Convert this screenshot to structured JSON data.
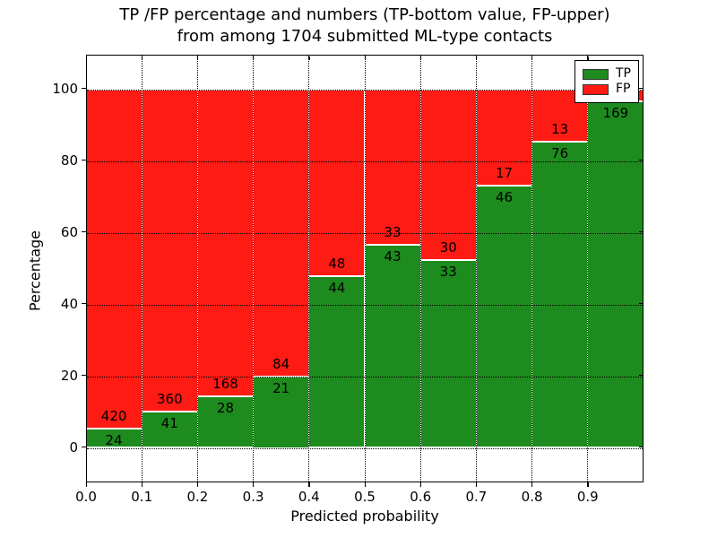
{
  "figure": {
    "title_line1": "TP /FP percentage and numbers (TP-bottom value, FP-upper)",
    "title_line2": "from among 1704 submitted ML-type contacts"
  },
  "chart_data": {
    "type": "bar",
    "subtype": "stacked_percentage_histogram",
    "title": "TP /FP percentage and numbers (TP-bottom value, FP-upper) from among 1704 submitted ML-type contacts",
    "xlabel": "Predicted probability",
    "ylabel": "Percentage",
    "total_contacts": 1704,
    "x_tick_labels": [
      "0.0",
      "0.1",
      "0.2",
      "0.3",
      "0.4",
      "0.5",
      "0.6",
      "0.7",
      "0.8",
      "0.9"
    ],
    "y_tick_values": [
      0,
      20,
      40,
      60,
      80,
      100
    ],
    "xlim": [
      0.0,
      1.0
    ],
    "ylim": [
      -9.5,
      109.6
    ],
    "grid": "dotted-black-on",
    "legend": {
      "position": "upper right",
      "entries": [
        {
          "label": "TP",
          "color": "#1e8b1e"
        },
        {
          "label": "FP",
          "color": "#fe1b14"
        }
      ]
    },
    "colors": {
      "tp": "#1e8b1e",
      "fp": "#fe1b14"
    },
    "bins": [
      {
        "range": [
          0.0,
          0.1
        ],
        "tp_count": 24,
        "fp_count": 420,
        "tp_pct": 5.41
      },
      {
        "range": [
          0.1,
          0.2
        ],
        "tp_count": 41,
        "fp_count": 360,
        "tp_pct": 10.22
      },
      {
        "range": [
          0.2,
          0.3
        ],
        "tp_count": 28,
        "fp_count": 168,
        "tp_pct": 14.29
      },
      {
        "range": [
          0.3,
          0.4
        ],
        "tp_count": 21,
        "fp_count": 84,
        "tp_pct": 20.0
      },
      {
        "range": [
          0.4,
          0.5
        ],
        "tp_count": 44,
        "fp_count": 48,
        "tp_pct": 47.83
      },
      {
        "range": [
          0.5,
          0.6
        ],
        "tp_count": 43,
        "fp_count": 33,
        "tp_pct": 56.58
      },
      {
        "range": [
          0.6,
          0.7
        ],
        "tp_count": 33,
        "fp_count": 30,
        "tp_pct": 52.38
      },
      {
        "range": [
          0.7,
          0.8
        ],
        "tp_count": 46,
        "fp_count": 17,
        "tp_pct": 73.02
      },
      {
        "range": [
          0.8,
          0.9
        ],
        "tp_count": 76,
        "fp_count": 13,
        "tp_pct": 85.39
      },
      {
        "range": [
          0.9,
          1.0
        ],
        "tp_count": 169,
        "fp_count": null,
        "tp_pct": 96.57
      }
    ]
  }
}
